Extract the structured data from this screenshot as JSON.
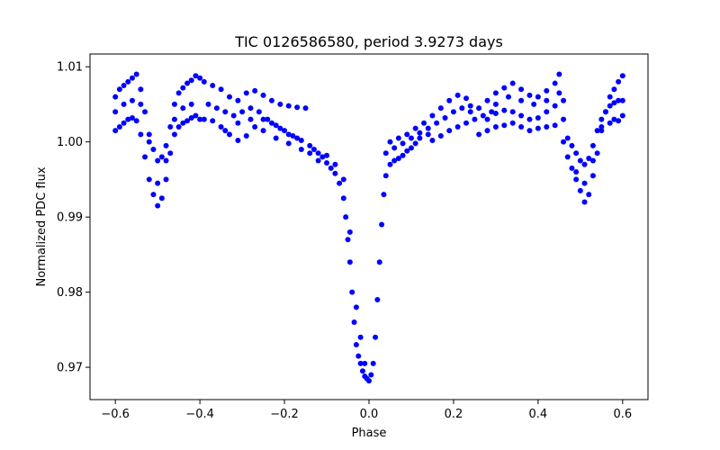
{
  "chart_data": {
    "type": "scatter",
    "title": "TIC 0126586580, period 3.9273 days",
    "xlabel": "Phase",
    "ylabel": "Normalized PDC flux",
    "xlim": [
      -0.66,
      0.66
    ],
    "ylim": [
      0.9657,
      1.0117
    ],
    "xticks": [
      -0.6,
      -0.4,
      -0.2,
      0.0,
      0.2,
      0.4,
      0.6
    ],
    "xtick_labels": [
      "−0.6",
      "−0.4",
      "−0.2",
      "0.0",
      "0.2",
      "0.4",
      "0.6"
    ],
    "yticks": [
      0.97,
      0.98,
      0.99,
      1.0,
      1.01
    ],
    "ytick_labels": [
      "0.97",
      "0.98",
      "0.99",
      "1.00",
      "1.01"
    ],
    "grid": false,
    "marker_color": "#0000ff",
    "series": [
      {
        "name": "",
        "points": [
          [
            -0.6,
            1.006
          ],
          [
            -0.59,
            1.007
          ],
          [
            -0.58,
            1.0075
          ],
          [
            -0.57,
            1.008
          ],
          [
            -0.56,
            1.0085
          ],
          [
            -0.55,
            1.009
          ],
          [
            -0.54,
            1.007
          ],
          [
            -0.53,
            1.004
          ],
          [
            -0.52,
            1.001
          ],
          [
            -0.51,
            0.999
          ],
          [
            -0.5,
            0.9975
          ],
          [
            -0.49,
            0.998
          ],
          [
            -0.48,
            0.9995
          ],
          [
            -0.47,
            1.002
          ],
          [
            -0.46,
            1.005
          ],
          [
            -0.45,
            1.0065
          ],
          [
            -0.44,
            1.0072
          ],
          [
            -0.43,
            1.0078
          ],
          [
            -0.42,
            1.0082
          ],
          [
            -0.41,
            1.0088
          ],
          [
            -0.4,
            1.0085
          ],
          [
            -0.6,
            1.0015
          ],
          [
            -0.59,
            1.002
          ],
          [
            -0.58,
            1.0025
          ],
          [
            -0.57,
            1.003
          ],
          [
            -0.56,
            1.0032
          ],
          [
            -0.55,
            1.0028
          ],
          [
            -0.54,
            1.001
          ],
          [
            -0.53,
            0.998
          ],
          [
            -0.52,
            0.995
          ],
          [
            -0.51,
            0.993
          ],
          [
            -0.5,
            0.9915
          ],
          [
            -0.49,
            0.9925
          ],
          [
            -0.48,
            0.995
          ],
          [
            -0.47,
            0.9985
          ],
          [
            -0.46,
            1.001
          ],
          [
            -0.45,
            1.002
          ],
          [
            -0.44,
            1.0025
          ],
          [
            -0.43,
            1.0028
          ],
          [
            -0.42,
            1.0032
          ],
          [
            -0.41,
            1.0035
          ],
          [
            -0.4,
            1.003
          ],
          [
            -0.6,
            1.004
          ],
          [
            -0.58,
            1.005
          ],
          [
            -0.56,
            1.0055
          ],
          [
            -0.54,
            1.005
          ],
          [
            -0.52,
            1.0
          ],
          [
            -0.5,
            0.9945
          ],
          [
            -0.48,
            0.9975
          ],
          [
            -0.46,
            1.003
          ],
          [
            -0.44,
            1.0045
          ],
          [
            -0.42,
            1.005
          ],
          [
            -0.39,
            1.008
          ],
          [
            -0.37,
            1.0075
          ],
          [
            -0.35,
            1.007
          ],
          [
            -0.33,
            1.006
          ],
          [
            -0.31,
            1.0055
          ],
          [
            -0.29,
            1.0065
          ],
          [
            -0.27,
            1.0068
          ],
          [
            -0.25,
            1.0062
          ],
          [
            -0.23,
            1.0055
          ],
          [
            -0.21,
            1.005
          ],
          [
            -0.19,
            1.0048
          ],
          [
            -0.17,
            1.0046
          ],
          [
            -0.15,
            1.0045
          ],
          [
            -0.39,
            1.003
          ],
          [
            -0.37,
            1.0028
          ],
          [
            -0.35,
            1.002
          ],
          [
            -0.33,
            1.001
          ],
          [
            -0.31,
            1.0002
          ],
          [
            -0.29,
            1.0008
          ],
          [
            -0.27,
            1.002
          ],
          [
            -0.25,
            1.003
          ],
          [
            -0.23,
            1.0025
          ],
          [
            -0.21,
            1.0018
          ],
          [
            -0.19,
            1.001
          ],
          [
            -0.17,
            1.0005
          ],
          [
            -0.38,
            1.005
          ],
          [
            -0.36,
            1.0045
          ],
          [
            -0.34,
            1.004
          ],
          [
            -0.32,
            1.0035
          ],
          [
            -0.3,
            1.004
          ],
          [
            -0.28,
            1.0045
          ],
          [
            -0.26,
            1.004
          ],
          [
            -0.24,
            1.003
          ],
          [
            -0.22,
            1.0022
          ],
          [
            -0.2,
            1.0015
          ],
          [
            -0.18,
            1.0008
          ],
          [
            -0.16,
            1.0002
          ],
          [
            -0.34,
            1.0015
          ],
          [
            -0.31,
            1.0025
          ],
          [
            -0.28,
            1.003
          ],
          [
            -0.25,
            1.0015
          ],
          [
            -0.22,
            1.0005
          ],
          [
            -0.19,
            0.9998
          ],
          [
            -0.16,
            0.999
          ],
          [
            -0.14,
            0.9985
          ],
          [
            -0.14,
            0.9995
          ],
          [
            -0.13,
            0.999
          ],
          [
            -0.12,
            0.9985
          ],
          [
            -0.11,
            0.998
          ],
          [
            -0.1,
            0.9972
          ],
          [
            -0.09,
            0.9965
          ],
          [
            -0.08,
            0.9958
          ],
          [
            -0.07,
            0.9945
          ],
          [
            -0.06,
            0.9925
          ],
          [
            -0.055,
            0.99
          ],
          [
            -0.05,
            0.987
          ],
          [
            -0.045,
            0.984
          ],
          [
            -0.04,
            0.98
          ],
          [
            -0.035,
            0.976
          ],
          [
            -0.03,
            0.973
          ],
          [
            -0.025,
            0.9715
          ],
          [
            -0.02,
            0.9705
          ],
          [
            -0.015,
            0.9695
          ],
          [
            -0.01,
            0.9688
          ],
          [
            -0.005,
            0.9685
          ],
          [
            -0.12,
            0.9975
          ],
          [
            -0.1,
            0.9982
          ],
          [
            -0.08,
            0.997
          ],
          [
            -0.06,
            0.995
          ],
          [
            -0.045,
            0.988
          ],
          [
            -0.03,
            0.978
          ],
          [
            -0.02,
            0.974
          ],
          [
            -0.01,
            0.9705
          ],
          [
            0.0,
            0.9682
          ],
          [
            0.005,
            0.969
          ],
          [
            0.01,
            0.9705
          ],
          [
            0.015,
            0.974
          ],
          [
            0.02,
            0.979
          ],
          [
            0.025,
            0.984
          ],
          [
            0.03,
            0.989
          ],
          [
            0.035,
            0.993
          ],
          [
            0.04,
            0.9955
          ],
          [
            0.05,
            0.997
          ],
          [
            0.06,
            0.9975
          ],
          [
            0.07,
            0.9978
          ],
          [
            0.08,
            0.9982
          ],
          [
            0.09,
            0.9988
          ],
          [
            0.1,
            0.9992
          ],
          [
            0.11,
            0.9998
          ],
          [
            0.12,
            1.0005
          ],
          [
            0.14,
            1.001
          ],
          [
            0.04,
            0.9985
          ],
          [
            0.06,
            0.9992
          ],
          [
            0.08,
            0.9998
          ],
          [
            0.1,
            1.0005
          ],
          [
            0.12,
            1.0012
          ],
          [
            0.14,
            1.0018
          ],
          [
            0.16,
            1.0025
          ],
          [
            0.18,
            1.0032
          ],
          [
            0.2,
            1.004
          ],
          [
            0.22,
            1.0045
          ],
          [
            0.24,
            1.0048
          ],
          [
            0.05,
            1.0
          ],
          [
            0.07,
            1.0005
          ],
          [
            0.09,
            1.001
          ],
          [
            0.11,
            1.0018
          ],
          [
            0.13,
            1.0025
          ],
          [
            0.15,
            1.0035
          ],
          [
            0.17,
            1.0045
          ],
          [
            0.19,
            1.0055
          ],
          [
            0.21,
            1.0062
          ],
          [
            0.23,
            1.0058
          ],
          [
            0.15,
            1.0002
          ],
          [
            0.17,
            1.0008
          ],
          [
            0.19,
            1.0015
          ],
          [
            0.21,
            1.002
          ],
          [
            0.23,
            1.0025
          ],
          [
            0.25,
            1.003
          ],
          [
            0.27,
            1.0035
          ],
          [
            0.29,
            1.004
          ],
          [
            0.24,
            1.004
          ],
          [
            0.26,
            1.0045
          ],
          [
            0.28,
            1.0055
          ],
          [
            0.3,
            1.0065
          ],
          [
            0.32,
            1.0072
          ],
          [
            0.34,
            1.0078
          ],
          [
            0.36,
            1.007
          ],
          [
            0.38,
            1.0062
          ],
          [
            0.4,
            1.006
          ],
          [
            0.42,
            1.0068
          ],
          [
            0.44,
            1.0078
          ],
          [
            0.45,
            1.009
          ],
          [
            0.26,
            1.001
          ],
          [
            0.28,
            1.0015
          ],
          [
            0.3,
            1.002
          ],
          [
            0.32,
            1.0022
          ],
          [
            0.34,
            1.0025
          ],
          [
            0.36,
            1.002
          ],
          [
            0.38,
            1.0015
          ],
          [
            0.4,
            1.0018
          ],
          [
            0.42,
            1.002
          ],
          [
            0.44,
            1.0022
          ],
          [
            0.46,
            1.003
          ],
          [
            0.28,
            1.003
          ],
          [
            0.3,
            1.0038
          ],
          [
            0.32,
            1.0042
          ],
          [
            0.34,
            1.004
          ],
          [
            0.36,
            1.0035
          ],
          [
            0.38,
            1.003
          ],
          [
            0.4,
            1.0032
          ],
          [
            0.42,
            1.004
          ],
          [
            0.44,
            1.0048
          ],
          [
            0.46,
            1.0055
          ],
          [
            0.3,
            1.005
          ],
          [
            0.33,
            1.006
          ],
          [
            0.36,
            1.0055
          ],
          [
            0.39,
            1.005
          ],
          [
            0.42,
            1.0055
          ],
          [
            0.45,
            1.0065
          ],
          [
            0.46,
            1.0
          ],
          [
            0.47,
            0.998
          ],
          [
            0.48,
            0.9965
          ],
          [
            0.49,
            0.995
          ],
          [
            0.5,
            0.9935
          ],
          [
            0.51,
            0.992
          ],
          [
            0.52,
            0.993
          ],
          [
            0.53,
            0.9955
          ],
          [
            0.54,
            0.9985
          ],
          [
            0.55,
            1.0015
          ],
          [
            0.56,
            1.004
          ],
          [
            0.57,
            1.006
          ],
          [
            0.58,
            1.007
          ],
          [
            0.59,
            1.008
          ],
          [
            0.6,
            1.0088
          ],
          [
            0.47,
            1.0005
          ],
          [
            0.48,
            0.9995
          ],
          [
            0.49,
            0.9985
          ],
          [
            0.5,
            0.9975
          ],
          [
            0.51,
            0.997
          ],
          [
            0.52,
            0.9978
          ],
          [
            0.53,
            0.9995
          ],
          [
            0.54,
            1.0015
          ],
          [
            0.55,
            1.003
          ],
          [
            0.56,
            1.004
          ],
          [
            0.57,
            1.0048
          ],
          [
            0.58,
            1.0052
          ],
          [
            0.59,
            1.0055
          ],
          [
            0.6,
            1.0055
          ],
          [
            0.49,
            0.996
          ],
          [
            0.51,
            0.9945
          ],
          [
            0.53,
            0.9975
          ],
          [
            0.55,
            1.002
          ],
          [
            0.57,
            1.0025
          ],
          [
            0.58,
            1.003
          ],
          [
            0.59,
            1.0028
          ],
          [
            0.6,
            1.0035
          ]
        ]
      }
    ]
  }
}
